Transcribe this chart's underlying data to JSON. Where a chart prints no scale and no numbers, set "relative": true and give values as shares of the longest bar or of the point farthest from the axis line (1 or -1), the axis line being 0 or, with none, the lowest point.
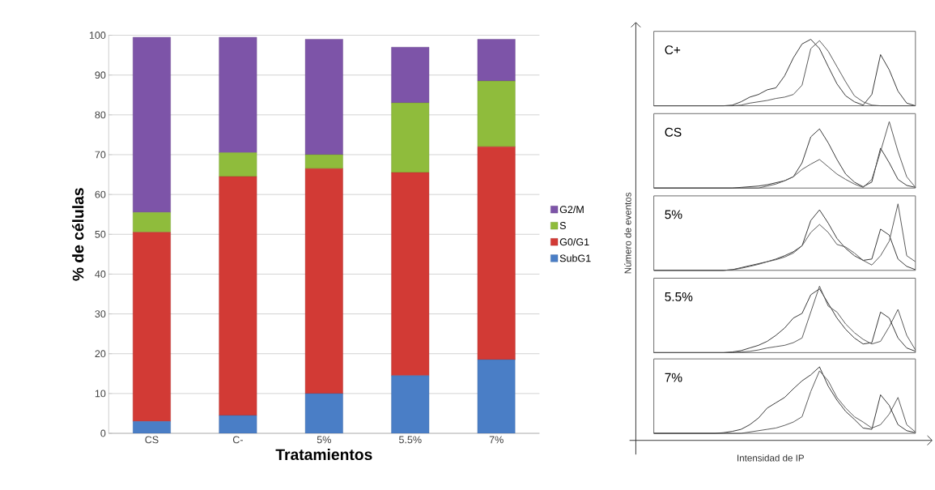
{
  "chart_data": [
    {
      "type": "bar",
      "xlabel": "Tratamientos",
      "ylabel": "% de células",
      "categories": [
        "CS",
        "C-",
        "5%",
        "5.5%",
        "7%"
      ],
      "stacked": true,
      "ylim": [
        0,
        100
      ],
      "yticks": [
        0,
        10,
        20,
        30,
        40,
        50,
        60,
        70,
        80,
        90,
        100
      ],
      "grid": "y",
      "legend": "right",
      "series": [
        {
          "name": "SubG1",
          "color": "#4a7ec6",
          "values": [
            3,
            4.5,
            10,
            14.5,
            18.5
          ]
        },
        {
          "name": "G0/G1",
          "color": "#d23a35",
          "values": [
            47.5,
            60,
            56.5,
            51,
            53.5
          ]
        },
        {
          "name": "S",
          "color": "#8fbc3c",
          "values": [
            5,
            6,
            3.5,
            17.5,
            16.5
          ]
        },
        {
          "name": "G2/M",
          "color": "#7d54a8",
          "values": [
            44,
            29,
            29,
            14,
            10.5
          ]
        }
      ]
    },
    {
      "type": "line",
      "relative": true,
      "annotations": [
        "C+"
      ],
      "categories": [
        null,
        null,
        null,
        null,
        null,
        null,
        null,
        null,
        null,
        null,
        null,
        null,
        null,
        null,
        null,
        null,
        null,
        null,
        null,
        null,
        null,
        null,
        null,
        null,
        null,
        null,
        null,
        null,
        null,
        null,
        null
      ],
      "series": [
        {
          "color": "#333333",
          "values": [
            0,
            0,
            0,
            0,
            0,
            0,
            0,
            0,
            0,
            0.01,
            0.06,
            0.13,
            0.17,
            0.24,
            0.27,
            0.45,
            0.72,
            0.93,
            1,
            0.86,
            0.59,
            0.33,
            0.15,
            0.06,
            0.01,
            0.17,
            0.77,
            0.54,
            0.22,
            0.04,
            0
          ]
        },
        {
          "color": "#555555",
          "values": [
            0,
            0,
            0,
            0,
            0,
            0,
            0,
            0,
            0,
            0,
            0.01,
            0.04,
            0.06,
            0.08,
            0.11,
            0.13,
            0.17,
            0.31,
            0.86,
            0.98,
            0.82,
            0.59,
            0.36,
            0.15,
            0.06,
            0.01,
            0,
            0,
            0,
            0,
            0
          ]
        }
      ]
    },
    {
      "type": "line",
      "relative": true,
      "annotations": [
        "CS"
      ],
      "categories": [
        null,
        null,
        null,
        null,
        null,
        null,
        null,
        null,
        null,
        null,
        null,
        null,
        null,
        null,
        null,
        null,
        null,
        null,
        null,
        null,
        null,
        null,
        null,
        null,
        null,
        null,
        null,
        null,
        null,
        null,
        null
      ],
      "series": [
        {
          "color": "#333333",
          "values": [
            0,
            0,
            0,
            0,
            0,
            0,
            0,
            0,
            0,
            0,
            0.01,
            0.02,
            0.03,
            0.05,
            0.08,
            0.11,
            0.17,
            0.38,
            0.77,
            0.89,
            0.68,
            0.43,
            0.21,
            0.09,
            0.02,
            0.09,
            0.6,
            0.38,
            0.13,
            0.04,
            0.01
          ]
        },
        {
          "color": "#555555",
          "values": [
            0,
            0,
            0,
            0,
            0,
            0,
            0,
            0,
            0,
            0,
            0,
            0,
            0,
            0.03,
            0.06,
            0.11,
            0.17,
            0.28,
            0.36,
            0.43,
            0.32,
            0.21,
            0.13,
            0.06,
            0.01,
            0.13,
            0.55,
            1,
            0.55,
            0.17,
            0.01
          ]
        }
      ]
    },
    {
      "type": "line",
      "relative": true,
      "ylabel": "Número de eventos",
      "annotations": [
        "5%"
      ],
      "categories": [
        null,
        null,
        null,
        null,
        null,
        null,
        null,
        null,
        null,
        null,
        null,
        null,
        null,
        null,
        null,
        null,
        null,
        null,
        null,
        null,
        null,
        null,
        null,
        null,
        null,
        null,
        null,
        null,
        null,
        null,
        null
      ],
      "series": [
        {
          "color": "#333333",
          "values": [
            0,
            0,
            0,
            0,
            0,
            0,
            0,
            0,
            0,
            0.01,
            0.04,
            0.07,
            0.1,
            0.13,
            0.17,
            0.22,
            0.28,
            0.37,
            0.75,
            0.91,
            0.71,
            0.48,
            0.33,
            0.22,
            0.15,
            0.17,
            0.62,
            0.53,
            0.17,
            0.06,
            0.01
          ]
        },
        {
          "color": "#555555",
          "values": [
            0,
            0,
            0,
            0,
            0,
            0,
            0,
            0,
            0,
            0.01,
            0.03,
            0.06,
            0.09,
            0.13,
            0.16,
            0.2,
            0.26,
            0.37,
            0.57,
            0.69,
            0.57,
            0.39,
            0.35,
            0.26,
            0.15,
            0.08,
            0.22,
            0.44,
            1,
            0.22,
            0.13
          ]
        }
      ]
    },
    {
      "type": "line",
      "relative": true,
      "annotations": [
        "5.5%"
      ],
      "categories": [
        null,
        null,
        null,
        null,
        null,
        null,
        null,
        null,
        null,
        null,
        null,
        null,
        null,
        null,
        null,
        null,
        null,
        null,
        null,
        null,
        null,
        null,
        null,
        null,
        null,
        null,
        null,
        null,
        null,
        null,
        null
      ],
      "series": [
        {
          "color": "#333333",
          "values": [
            0,
            0,
            0,
            0,
            0,
            0,
            0,
            0,
            0,
            0.01,
            0.03,
            0.07,
            0.11,
            0.17,
            0.26,
            0.37,
            0.52,
            0.59,
            0.87,
            0.96,
            0.74,
            0.52,
            0.35,
            0.22,
            0.13,
            0.15,
            0.61,
            0.52,
            0.22,
            0.07,
            0.02
          ]
        },
        {
          "color": "#555555",
          "values": [
            0,
            0,
            0,
            0,
            0,
            0,
            0,
            0,
            0,
            0,
            0.01,
            0.02,
            0.04,
            0.07,
            0.09,
            0.11,
            0.15,
            0.22,
            0.61,
            1,
            0.7,
            0.61,
            0.43,
            0.3,
            0.2,
            0.13,
            0.17,
            0.39,
            0.65,
            0.26,
            0.04
          ]
        }
      ]
    },
    {
      "type": "line",
      "relative": true,
      "xlabel": "Intensidad de IP",
      "annotations": [
        "7%"
      ],
      "categories": [
        null,
        null,
        null,
        null,
        null,
        null,
        null,
        null,
        null,
        null,
        null,
        null,
        null,
        null,
        null,
        null,
        null,
        null,
        null,
        null,
        null,
        null,
        null,
        null,
        null,
        null,
        null,
        null,
        null,
        null,
        null
      ],
      "series": [
        {
          "color": "#333333",
          "values": [
            0,
            0,
            0,
            0,
            0,
            0,
            0,
            0,
            0.01,
            0.03,
            0.06,
            0.13,
            0.23,
            0.38,
            0.46,
            0.54,
            0.67,
            0.79,
            0.88,
            1,
            0.71,
            0.5,
            0.33,
            0.21,
            0.08,
            0.06,
            0.58,
            0.42,
            0.13,
            0.04,
            0.01
          ]
        },
        {
          "color": "#555555",
          "values": [
            0,
            0,
            0,
            0,
            0,
            0,
            0,
            0,
            0,
            0,
            0,
            0.02,
            0.04,
            0.06,
            0.08,
            0.12,
            0.17,
            0.25,
            0.63,
            0.94,
            0.79,
            0.54,
            0.38,
            0.25,
            0.17,
            0.08,
            0.13,
            0.29,
            0.54,
            0.13,
            0.02
          ]
        }
      ]
    }
  ]
}
